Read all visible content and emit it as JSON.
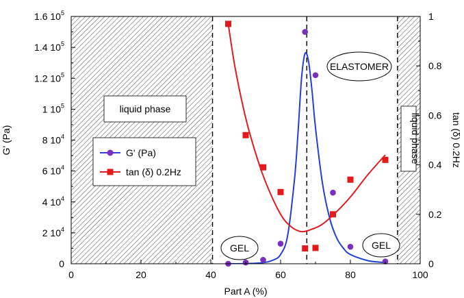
{
  "chart_data": {
    "type": "scatter",
    "xlabel": "Part A (%)",
    "ylabel_left": "G' (Pa)",
    "ylabel_right": "tan (δ) 0.2Hz",
    "xlim": [
      0,
      100
    ],
    "ylim_left": [
      0,
      160000
    ],
    "ylim_right": [
      0,
      1
    ],
    "x_ticks": [
      "0",
      "20",
      "40",
      "60",
      "80",
      "100"
    ],
    "y_left_ticks": [
      {
        "value": 0,
        "mant": "0",
        "exp": ""
      },
      {
        "value": 20000,
        "mant": "2 10",
        "exp": "4"
      },
      {
        "value": 40000,
        "mant": "4 10",
        "exp": "4"
      },
      {
        "value": 60000,
        "mant": "6 10",
        "exp": "4"
      },
      {
        "value": 80000,
        "mant": "8 10",
        "exp": "4"
      },
      {
        "value": 100000,
        "mant": "1 10",
        "exp": "5"
      },
      {
        "value": 120000,
        "mant": "1.2 10",
        "exp": "5"
      },
      {
        "value": 140000,
        "mant": "1.4 10",
        "exp": "5"
      },
      {
        "value": 160000,
        "mant": "1.6 10",
        "exp": "5"
      }
    ],
    "y_right_ticks": [
      "0",
      "0.2",
      "0.4",
      "0.6",
      "0.8",
      "1"
    ],
    "series": [
      {
        "name": "G' (Pa)",
        "axis": "left",
        "color": "#7b2fbe",
        "marker": "circle",
        "x": [
          45,
          50,
          55,
          60,
          67,
          70,
          75,
          80,
          90
        ],
        "y": [
          0,
          800,
          2500,
          13000,
          150000,
          122000,
          46000,
          11000,
          1500
        ]
      },
      {
        "name": "tan (δ) 0.2Hz",
        "axis": "right",
        "color": "#e31a1c",
        "marker": "square",
        "x": [
          45,
          50,
          55,
          60,
          67,
          70,
          75,
          80,
          90
        ],
        "y": [
          0.97,
          0.52,
          0.39,
          0.29,
          0.062,
          0.064,
          0.2,
          0.34,
          0.42
        ]
      }
    ],
    "fit_curves": {
      "g_prime": {
        "x": [
          45,
          50,
          55,
          58,
          60,
          62,
          64,
          65,
          66,
          67,
          68,
          69,
          70,
          72,
          74,
          76,
          78,
          80,
          85,
          90
        ],
        "y": [
          0,
          100,
          700,
          2500,
          6000,
          18000,
          55000,
          85000,
          120000,
          136000,
          131000,
          112000,
          88000,
          52000,
          30000,
          17000,
          10000,
          6000,
          2000,
          800
        ]
      },
      "tan_delta": {
        "x": [
          45,
          47,
          50,
          53,
          56,
          60,
          63,
          66,
          69,
          72,
          76,
          80,
          85,
          90
        ],
        "y": [
          0.97,
          0.79,
          0.59,
          0.44,
          0.32,
          0.2,
          0.15,
          0.13,
          0.14,
          0.16,
          0.21,
          0.27,
          0.36,
          0.44
        ]
      }
    },
    "vlines": [
      40.5,
      67.5,
      93.5
    ],
    "hatched_regions": [
      [
        0,
        40.5
      ],
      [
        93.5,
        100
      ]
    ],
    "annotations": {
      "liquid_left": "liquid phase",
      "liquid_right": "liquid phase",
      "elastomer": "ELASTOMER",
      "gel_left": "GEL",
      "gel_right": "GEL"
    },
    "legend_position": "left-middle",
    "grid": false
  }
}
